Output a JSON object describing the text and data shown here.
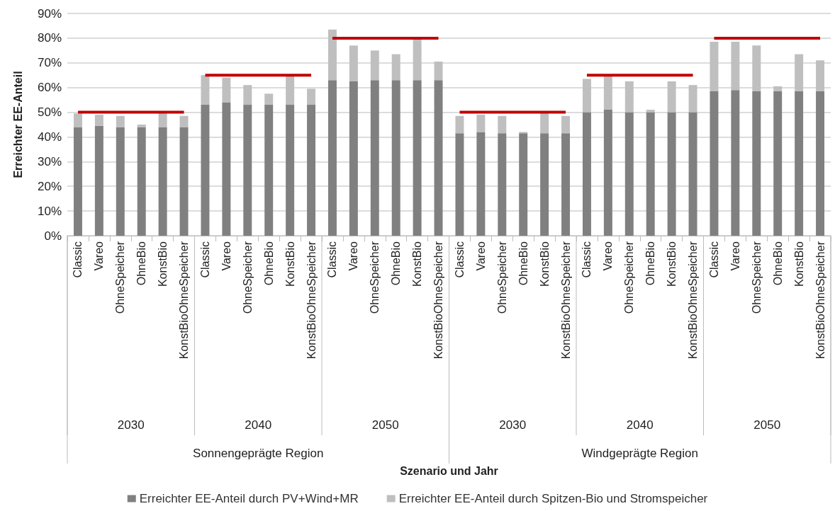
{
  "chart_data": {
    "type": "bar",
    "stacked": true,
    "ylabel": "Erreichter EE-Anteil",
    "categories": [
      "Classic",
      "Vareo",
      "OhneSpeicher",
      "OhneBio",
      "KonstBio",
      "KonstBioOhneSpeicher",
      "Classic",
      "Vareo",
      "OhneSpeicher",
      "OhneBio",
      "KonstBio",
      "KonstBioOhneSpeicher",
      "Classic",
      "Vareo",
      "OhneSpeicher",
      "OhneBio",
      "KonstBio",
      "KonstBioOhneSpeicher",
      "Classic",
      "Vareo",
      "OhneSpeicher",
      "OhneBio",
      "KonstBio",
      "KonstBioOhneSpeicher",
      "Classic",
      "Vareo",
      "OhneSpeicher",
      "OhneBio",
      "KonstBio",
      "KonstBioOhneSpeicher",
      "Classic",
      "Vareo",
      "OhneSpeicher",
      "OhneBio",
      "KonstBio",
      "KonstBioOhneSpeicher"
    ],
    "series": [
      {
        "name": "Erreichter EE-Anteil durch PV+Wind+MR",
        "color": "#808080",
        "values": [
          44,
          44.5,
          44,
          44,
          44,
          44,
          53,
          54,
          53,
          53,
          53,
          53,
          63,
          62.5,
          63,
          63,
          63,
          63,
          41.5,
          42,
          41.5,
          41.5,
          41.5,
          41.5,
          50,
          51,
          50,
          50,
          50,
          50,
          58.5,
          59,
          58.5,
          58.5,
          58.5,
          58.5
        ]
      },
      {
        "name": "Erreichter EE-Anteil durch Spitzen-Bio und Stromspeicher",
        "color": "#bfbfbf",
        "values": [
          5.5,
          4.5,
          4.5,
          1,
          6,
          4.5,
          12,
          10,
          8,
          4.5,
          12,
          6.5,
          20.5,
          14.5,
          12,
          10.5,
          17,
          7.5,
          7,
          7,
          7,
          0.5,
          8.5,
          7,
          13.5,
          13.5,
          12.5,
          1,
          12.5,
          11,
          20,
          19.5,
          18.5,
          2,
          15,
          12.5
        ]
      },
      {
        "type": "line",
        "color": "#c00000",
        "values": [
          50,
          50,
          50,
          50,
          50,
          50,
          null,
          null,
          null,
          null,
          null,
          null,
          null,
          null,
          null,
          null,
          null,
          null,
          null,
          null,
          null,
          null,
          null,
          null,
          null,
          null,
          null,
          null,
          null,
          null,
          null,
          null,
          null,
          null,
          null,
          null
        ]
      },
      {
        "type": "line",
        "color": "#c00000",
        "values": [
          null,
          null,
          null,
          null,
          null,
          null,
          65,
          65,
          65,
          65,
          65,
          65,
          null,
          null,
          null,
          null,
          null,
          null,
          null,
          null,
          null,
          null,
          null,
          null,
          null,
          null,
          null,
          null,
          null,
          null,
          null,
          null,
          null,
          null,
          null,
          null
        ]
      },
      {
        "type": "line",
        "color": "#c00000",
        "values": [
          null,
          null,
          null,
          null,
          null,
          null,
          null,
          null,
          null,
          null,
          null,
          null,
          80,
          80,
          80,
          80,
          80,
          80,
          null,
          null,
          null,
          null,
          null,
          null,
          null,
          null,
          null,
          null,
          null,
          null,
          null,
          null,
          null,
          null,
          null,
          null
        ]
      },
      {
        "type": "line",
        "color": "#c00000",
        "values": [
          null,
          null,
          null,
          null,
          null,
          null,
          null,
          null,
          null,
          null,
          null,
          null,
          null,
          null,
          null,
          null,
          null,
          null,
          50,
          50,
          50,
          50,
          50,
          50,
          null,
          null,
          null,
          null,
          null,
          null,
          null,
          null,
          null,
          null,
          null,
          null
        ]
      },
      {
        "type": "line",
        "color": "#c00000",
        "values": [
          null,
          null,
          null,
          null,
          null,
          null,
          null,
          null,
          null,
          null,
          null,
          null,
          null,
          null,
          null,
          null,
          null,
          null,
          null,
          null,
          null,
          null,
          null,
          null,
          65,
          65,
          65,
          65,
          65,
          65,
          null,
          null,
          null,
          null,
          null,
          null
        ]
      },
      {
        "type": "line",
        "color": "#c00000",
        "values": [
          null,
          null,
          null,
          null,
          null,
          null,
          null,
          null,
          null,
          null,
          null,
          null,
          null,
          null,
          null,
          null,
          null,
          null,
          null,
          null,
          null,
          null,
          null,
          null,
          null,
          null,
          null,
          null,
          null,
          null,
          80,
          80,
          80,
          80,
          80,
          80
        ]
      }
    ],
    "ylim": [
      0,
      90
    ],
    "yticks": [
      {
        "value": 0,
        "label": "0%"
      },
      {
        "value": 10,
        "label": "10%"
      },
      {
        "value": 20,
        "label": "20%"
      },
      {
        "value": 30,
        "label": "30%"
      },
      {
        "value": 40,
        "label": "40%"
      },
      {
        "value": 50,
        "label": "50%"
      },
      {
        "value": 60,
        "label": "60%"
      },
      {
        "value": 70,
        "label": "70%"
      },
      {
        "value": 80,
        "label": "80%"
      },
      {
        "value": 90,
        "label": "90%"
      }
    ],
    "grid": "y",
    "legend": "bottom",
    "marker": "none",
    "annotations": [
      "2030",
      "2040",
      "2050",
      "2030",
      "2040",
      "2050",
      "Sonnengeprägte Region",
      "Windgeprägte Region",
      "Szenario und Jahr"
    ]
  }
}
